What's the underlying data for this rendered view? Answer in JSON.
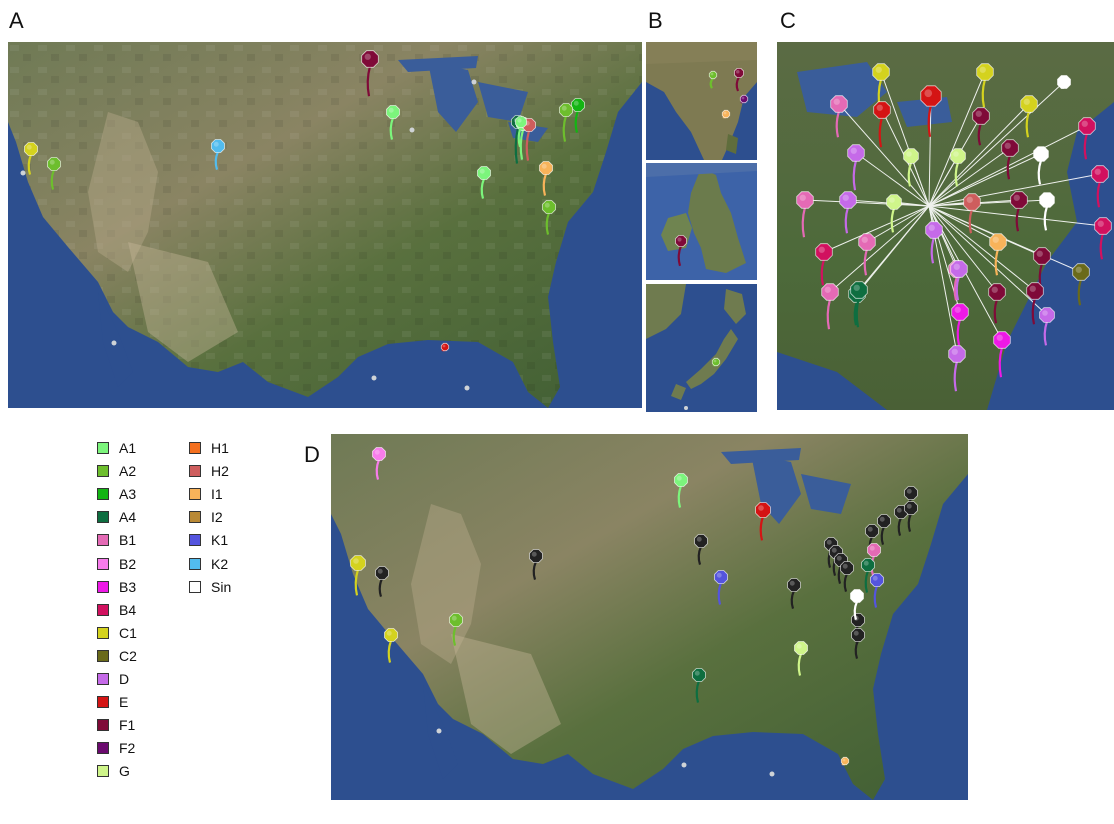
{
  "panels": [
    {
      "label": "A"
    },
    {
      "label": "B"
    },
    {
      "label": "C"
    },
    {
      "label": "D"
    }
  ],
  "legend": {
    "col1": [
      {
        "label": "A1",
        "color": "#7CF57C"
      },
      {
        "label": "A2",
        "color": "#6DBE2D"
      },
      {
        "label": "A3",
        "color": "#13B513"
      },
      {
        "label": "A4",
        "color": "#0E6E40"
      },
      {
        "label": "B1",
        "color": "#E46AB5"
      },
      {
        "label": "B2",
        "color": "#F77CEB"
      },
      {
        "label": "B3",
        "color": "#EE18E6"
      },
      {
        "label": "B4",
        "color": "#D1115F"
      },
      {
        "label": "C1",
        "color": "#D4D21E"
      },
      {
        "label": "C2",
        "color": "#6A6A1A"
      },
      {
        "label": "D",
        "color": "#C56AE8"
      },
      {
        "label": "E",
        "color": "#D41414"
      },
      {
        "label": "F1",
        "color": "#7F0A38"
      },
      {
        "label": "F2",
        "color": "#6B0A6E"
      },
      {
        "label": "G",
        "color": "#CFF58A"
      }
    ],
    "col2": [
      {
        "label": "H1",
        "color": "#F4701F"
      },
      {
        "label": "H2",
        "color": "#CE5D5D"
      },
      {
        "label": "I1",
        "color": "#F8B35A"
      },
      {
        "label": "I2",
        "color": "#B98935"
      },
      {
        "label": "K1",
        "color": "#5454DE"
      },
      {
        "label": "K2",
        "color": "#52BCEE"
      },
      {
        "label": "Sin",
        "color": "#FFFFFF"
      }
    ]
  },
  "markers": {
    "A": [
      {
        "group": "F1",
        "color": "#7F0A38"
      },
      {
        "group": "A1",
        "color": "#7CF57C"
      },
      {
        "group": "K2",
        "color": "#52BCEE"
      },
      {
        "group": "C1",
        "color": "#D4D21E"
      },
      {
        "group": "A2",
        "color": "#6DBE2D"
      },
      {
        "group": "A4",
        "color": "#0E6E40"
      },
      {
        "group": "A1",
        "color": "#7CF57C"
      },
      {
        "group": "H2",
        "color": "#CE5D5D"
      },
      {
        "group": "A1",
        "color": "#7CF57C"
      },
      {
        "group": "A3",
        "color": "#13B513"
      },
      {
        "group": "A2",
        "color": "#6DBE2D"
      },
      {
        "group": "I1",
        "color": "#F8B35A"
      },
      {
        "group": "A1",
        "color": "#7CF57C"
      },
      {
        "group": "A2",
        "color": "#6DBE2D"
      },
      {
        "group": "E",
        "color": "#D41414"
      }
    ],
    "B": [
      {
        "group": "A2",
        "color": "#6DBE2D"
      },
      {
        "group": "F1",
        "color": "#7F0A38"
      },
      {
        "group": "F2",
        "color": "#6B0A6E"
      },
      {
        "group": "I1",
        "color": "#F8B35A"
      },
      {
        "group": "F1",
        "color": "#7F0A38"
      },
      {
        "group": "A2",
        "color": "#6DBE2D"
      }
    ],
    "C": [
      {
        "group": "C1",
        "color": "#D4D21E"
      },
      {
        "group": "C1",
        "color": "#D4D21E"
      },
      {
        "group": "E",
        "color": "#D41414"
      },
      {
        "group": "Sin",
        "color": "#FFFFFF"
      },
      {
        "group": "F1",
        "color": "#7F0A38"
      },
      {
        "group": "B1",
        "color": "#E46AB5"
      },
      {
        "group": "E",
        "color": "#D41414"
      },
      {
        "group": "C1",
        "color": "#D4D21E"
      },
      {
        "group": "B4",
        "color": "#D1115F"
      },
      {
        "group": "D",
        "color": "#C56AE8"
      },
      {
        "group": "G",
        "color": "#CFF58A"
      },
      {
        "group": "G",
        "color": "#CFF58A"
      },
      {
        "group": "F1",
        "color": "#7F0A38"
      },
      {
        "group": "Sin",
        "color": "#FFFFFF"
      },
      {
        "group": "B4",
        "color": "#D1115F"
      },
      {
        "group": "B1",
        "color": "#E46AB5"
      },
      {
        "group": "D",
        "color": "#C56AE8"
      },
      {
        "group": "G",
        "color": "#CFF58A"
      },
      {
        "group": "H2",
        "color": "#CE5D5D"
      },
      {
        "group": "F1",
        "color": "#7F0A38"
      },
      {
        "group": "Sin",
        "color": "#FFFFFF"
      },
      {
        "group": "B4",
        "color": "#D1115F"
      },
      {
        "group": "B4",
        "color": "#D1115F"
      },
      {
        "group": "B1",
        "color": "#E46AB5"
      },
      {
        "group": "D",
        "color": "#C56AE8"
      },
      {
        "group": "I1",
        "color": "#F8B35A"
      },
      {
        "group": "F1",
        "color": "#7F0A38"
      },
      {
        "group": "C2",
        "color": "#6A6A1A"
      },
      {
        "group": "A4",
        "color": "#0E6E40"
      },
      {
        "group": "B1",
        "color": "#E46AB5"
      },
      {
        "group": "F1",
        "color": "#7F0A38"
      },
      {
        "group": "D",
        "color": "#C56AE8"
      },
      {
        "group": "A4",
        "color": "#0E6E40"
      },
      {
        "group": "D",
        "color": "#C56AE8"
      },
      {
        "group": "B3",
        "color": "#EE18E6"
      },
      {
        "group": "B3",
        "color": "#EE18E6"
      },
      {
        "group": "D",
        "color": "#C56AE8"
      },
      {
        "group": "F1",
        "color": "#7F0A38"
      },
      {
        "group": "B1",
        "color": "#E46AB5"
      }
    ],
    "D": [
      {
        "group": "B2",
        "color": "#F77CEB"
      },
      {
        "group": "A1",
        "color": "#7CF57C"
      },
      {
        "group": "E",
        "color": "#D41414"
      },
      {
        "group": "C1",
        "color": "#D4D21E"
      },
      {
        "group": "K1",
        "color": "#5454DE"
      },
      {
        "group": "C1",
        "color": "#D4D21E"
      },
      {
        "group": "A2",
        "color": "#6DBE2D"
      },
      {
        "group": "G",
        "color": "#CFF58A"
      },
      {
        "group": "A4",
        "color": "#0E6E40"
      },
      {
        "group": "B1",
        "color": "#E46AB5"
      },
      {
        "group": "A4",
        "color": "#0E6E40"
      },
      {
        "group": "K1",
        "color": "#5454DE"
      },
      {
        "group": "Sin",
        "color": "#FFFFFF"
      },
      {
        "group": "I1",
        "color": "#F8B35A"
      }
    ]
  }
}
